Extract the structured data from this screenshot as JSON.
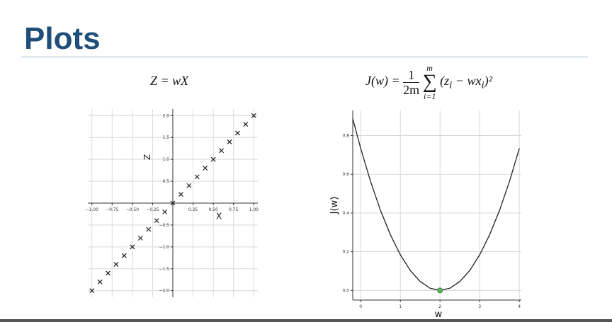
{
  "slide": {
    "title": "Plots"
  },
  "equations": {
    "left": "Z = wX",
    "right": {
      "lhs": "J(w) = ",
      "frac_num": "1",
      "frac_den": "2m",
      "sum_top": "m",
      "sum_sym": "∑",
      "sum_bot": "i=1",
      "body": "(z",
      "sub_i1": "i",
      "mid": " − wx",
      "sub_i2": "i",
      "tail": ")²"
    }
  },
  "chart_data": [
    {
      "type": "scatter",
      "title": "",
      "xlabel": "X",
      "ylabel": "Z",
      "xlim": [
        -1.05,
        1.05
      ],
      "ylim": [
        -2.15,
        2.15
      ],
      "grid": true,
      "marker": "x",
      "xticks": [
        -1.0,
        -0.75,
        -0.5,
        -0.25,
        0.25,
        0.5,
        0.75,
        1.0
      ],
      "xtick_labels": [
        "−1.00",
        "−0.75",
        "−0.50",
        "−0.25",
        "0.25",
        "0.50",
        "0.75",
        "1.00"
      ],
      "yticks": [
        -2.0,
        -1.5,
        -1.0,
        -0.5,
        0.5,
        1.0,
        1.5,
        2.0
      ],
      "ytick_labels": [
        "−2.0",
        "−1.5",
        "−1.0",
        "−0.5",
        "0.5",
        "1.0",
        "1.5",
        "2.0"
      ],
      "x": [
        -1.0,
        -0.9,
        -0.8,
        -0.7,
        -0.6,
        -0.5,
        -0.4,
        -0.3,
        -0.2,
        -0.1,
        0.0,
        0.1,
        0.2,
        0.3,
        0.4,
        0.5,
        0.6,
        0.7,
        0.8,
        0.9,
        1.0
      ],
      "y": [
        -2.0,
        -1.8,
        -1.6,
        -1.4,
        -1.2,
        -1.0,
        -0.8,
        -0.6,
        -0.4,
        -0.2,
        0.0,
        0.2,
        0.4,
        0.6,
        0.8,
        1.0,
        1.2,
        1.4,
        1.6,
        1.8,
        2.0
      ]
    },
    {
      "type": "line",
      "title": "",
      "xlabel": "w",
      "ylabel": "J(w)",
      "xlim": [
        -0.2,
        4.05
      ],
      "ylim": [
        -0.05,
        0.93
      ],
      "grid": true,
      "xticks": [
        0,
        1,
        2,
        3,
        4
      ],
      "xtick_labels": [
        "0",
        "1",
        "2",
        "3",
        "4"
      ],
      "yticks": [
        0.0,
        0.2,
        0.4,
        0.6,
        0.8
      ],
      "ytick_labels": [
        "0.0",
        "0.2",
        "0.4",
        "0.6",
        "0.8"
      ],
      "curve": "J(w) = 0.1835 (w − 2)²",
      "x": [
        -0.2,
        0.0,
        0.25,
        0.5,
        0.75,
        1.0,
        1.25,
        1.5,
        1.75,
        2.0,
        2.25,
        2.5,
        2.75,
        3.0,
        3.25,
        3.5,
        3.75,
        4.0
      ],
      "y": [
        0.888,
        0.734,
        0.562,
        0.413,
        0.287,
        0.184,
        0.103,
        0.046,
        0.011,
        0.0,
        0.011,
        0.046,
        0.103,
        0.184,
        0.287,
        0.413,
        0.562,
        0.734
      ],
      "highlight_point": {
        "x": 2.0,
        "y": 0.0,
        "color": "#5cb85c"
      },
      "line_color": "#222222"
    }
  ],
  "colors": {
    "title": "#1f4e79",
    "grid": "#d9d9d9",
    "axis": "#333333",
    "marker": "#1a1a1a"
  }
}
